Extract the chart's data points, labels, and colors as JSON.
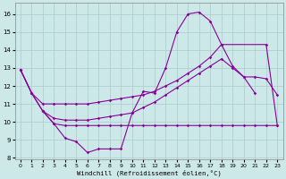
{
  "background_color": "#cce8e8",
  "line_color": "#880099",
  "grid_color": "#aacccc",
  "xlabel": "Windchill (Refroidissement éolien,°C)",
  "xlim": [
    -0.5,
    23.5
  ],
  "ylim": [
    7.9,
    16.6
  ],
  "yticks": [
    8,
    9,
    10,
    11,
    12,
    13,
    14,
    15,
    16
  ],
  "xticks": [
    0,
    1,
    2,
    3,
    4,
    5,
    6,
    7,
    8,
    9,
    10,
    11,
    12,
    13,
    14,
    15,
    16,
    17,
    18,
    19,
    20,
    21,
    22,
    23
  ],
  "lines": [
    {
      "x": [
        0,
        1,
        2,
        3,
        4,
        5,
        6,
        7,
        8,
        9,
        10,
        11,
        12,
        13,
        14,
        15,
        16,
        17,
        18,
        19,
        20,
        21
      ],
      "y": [
        12.9,
        11.6,
        10.6,
        9.9,
        9.1,
        8.9,
        8.3,
        8.5,
        8.5,
        8.5,
        10.5,
        11.7,
        11.6,
        13.0,
        15.0,
        16.0,
        16.1,
        15.6,
        14.3,
        13.1,
        12.5,
        11.6
      ]
    },
    {
      "x": [
        0,
        1,
        2,
        3,
        4,
        5,
        6,
        7,
        8,
        9,
        10,
        11,
        12,
        13,
        14,
        15,
        16,
        17,
        18,
        22,
        23
      ],
      "y": [
        12.9,
        11.6,
        11.0,
        11.0,
        11.0,
        11.0,
        11.0,
        11.1,
        11.2,
        11.3,
        11.4,
        11.5,
        11.7,
        12.0,
        12.3,
        12.7,
        13.1,
        13.6,
        14.3,
        14.3,
        9.8
      ]
    },
    {
      "x": [
        0,
        1,
        2,
        3,
        4,
        5,
        6,
        7,
        8,
        9,
        10,
        11,
        12,
        13,
        14,
        15,
        16,
        17,
        18,
        19,
        20,
        21,
        22,
        23
      ],
      "y": [
        12.9,
        11.6,
        10.6,
        10.2,
        10.1,
        10.1,
        10.1,
        10.2,
        10.3,
        10.4,
        10.5,
        10.8,
        11.1,
        11.5,
        11.9,
        12.3,
        12.7,
        13.1,
        13.5,
        13.0,
        12.5,
        12.5,
        12.4,
        11.5
      ]
    },
    {
      "x": [
        2,
        3,
        4,
        5,
        6,
        7,
        8,
        9,
        10,
        11,
        12,
        13,
        14,
        15,
        16,
        17,
        18,
        19,
        20,
        21,
        22,
        23
      ],
      "y": [
        10.6,
        9.9,
        9.8,
        9.8,
        9.8,
        9.8,
        9.8,
        9.8,
        9.8,
        9.8,
        9.8,
        9.8,
        9.8,
        9.8,
        9.8,
        9.8,
        9.8,
        9.8,
        9.8,
        9.8,
        9.8,
        9.8
      ]
    }
  ]
}
